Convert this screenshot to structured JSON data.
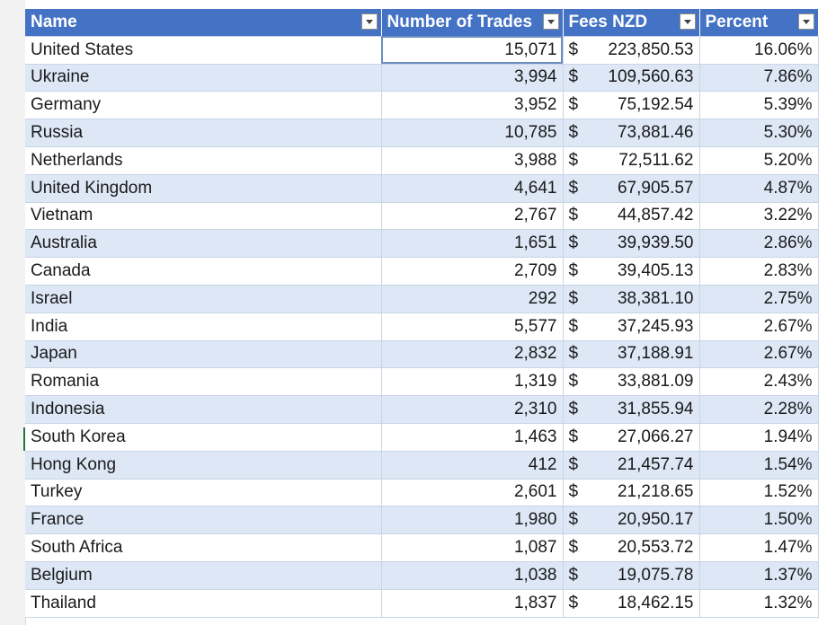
{
  "table": {
    "headers": {
      "name": "Name",
      "trades": "Number of Trades",
      "fees": "Fees NZD",
      "percent": "Percent"
    },
    "currency_symbol": "$",
    "rows": [
      {
        "name": "United States",
        "trades": "15,071",
        "fees": "223,850.53",
        "percent": "16.06%"
      },
      {
        "name": "Ukraine",
        "trades": "3,994",
        "fees": "109,560.63",
        "percent": "7.86%"
      },
      {
        "name": "Germany",
        "trades": "3,952",
        "fees": "75,192.54",
        "percent": "5.39%"
      },
      {
        "name": "Russia",
        "trades": "10,785",
        "fees": "73,881.46",
        "percent": "5.30%"
      },
      {
        "name": "Netherlands",
        "trades": "3,988",
        "fees": "72,511.62",
        "percent": "5.20%"
      },
      {
        "name": "United Kingdom",
        "trades": "4,641",
        "fees": "67,905.57",
        "percent": "4.87%"
      },
      {
        "name": "Vietnam",
        "trades": "2,767",
        "fees": "44,857.42",
        "percent": "3.22%"
      },
      {
        "name": "Australia",
        "trades": "1,651",
        "fees": "39,939.50",
        "percent": "2.86%"
      },
      {
        "name": "Canada",
        "trades": "2,709",
        "fees": "39,405.13",
        "percent": "2.83%"
      },
      {
        "name": "Israel",
        "trades": "292",
        "fees": "38,381.10",
        "percent": "2.75%"
      },
      {
        "name": "India",
        "trades": "5,577",
        "fees": "37,245.93",
        "percent": "2.67%"
      },
      {
        "name": "Japan",
        "trades": "2,832",
        "fees": "37,188.91",
        "percent": "2.67%"
      },
      {
        "name": "Romania",
        "trades": "1,319",
        "fees": "33,881.09",
        "percent": "2.43%"
      },
      {
        "name": "Indonesia",
        "trades": "2,310",
        "fees": "31,855.94",
        "percent": "2.28%"
      },
      {
        "name": "South Korea",
        "trades": "1,463",
        "fees": "27,066.27",
        "percent": "1.94%"
      },
      {
        "name": "Hong Kong",
        "trades": "412",
        "fees": "21,457.74",
        "percent": "1.54%"
      },
      {
        "name": "Turkey",
        "trades": "2,601",
        "fees": "21,218.65",
        "percent": "1.52%"
      },
      {
        "name": "France",
        "trades": "1,980",
        "fees": "20,950.17",
        "percent": "1.50%"
      },
      {
        "name": "South Africa",
        "trades": "1,087",
        "fees": "20,553.72",
        "percent": "1.47%"
      },
      {
        "name": "Belgium",
        "trades": "1,038",
        "fees": "19,075.78",
        "percent": "1.37%"
      },
      {
        "name": "Thailand",
        "trades": "1,837",
        "fees": "18,462.15",
        "percent": "1.32%"
      }
    ]
  },
  "colors": {
    "header_bg": "#4472c4",
    "band_bg": "#dde7f6",
    "gutter_bg": "#f2f2f2"
  }
}
